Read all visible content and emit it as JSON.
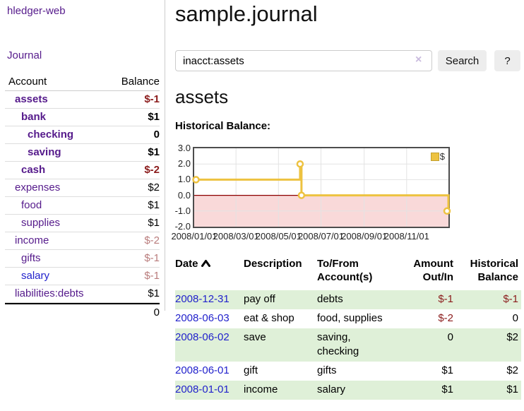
{
  "app": {
    "title": "hledger-web",
    "nav_journal": "Journal"
  },
  "sidebar": {
    "headers": {
      "account": "Account",
      "balance": "Balance"
    },
    "accounts": [
      {
        "name": "assets",
        "balance": "$-1",
        "level": 1,
        "bold": true,
        "neg": "strong",
        "blue": false
      },
      {
        "name": "bank",
        "balance": "$1",
        "level": 2,
        "bold": true,
        "neg": null,
        "blue": false
      },
      {
        "name": "checking",
        "balance": "0",
        "level": 3,
        "bold": true,
        "neg": null,
        "blue": false
      },
      {
        "name": "saving",
        "balance": "$1",
        "level": 3,
        "bold": true,
        "neg": null,
        "blue": false
      },
      {
        "name": "cash",
        "balance": "$-2",
        "level": 2,
        "bold": true,
        "neg": "strong",
        "blue": false
      },
      {
        "name": "expenses",
        "balance": "$2",
        "level": 1,
        "bold": false,
        "neg": null,
        "blue": false
      },
      {
        "name": "food",
        "balance": "$1",
        "level": 2,
        "bold": false,
        "neg": null,
        "blue": false
      },
      {
        "name": "supplies",
        "balance": "$1",
        "level": 2,
        "bold": false,
        "neg": null,
        "blue": false
      },
      {
        "name": "income",
        "balance": "$-2",
        "level": 1,
        "bold": false,
        "neg": "light",
        "blue": false
      },
      {
        "name": "gifts",
        "balance": "$-1",
        "level": 2,
        "bold": false,
        "neg": "light",
        "blue": false
      },
      {
        "name": "salary",
        "balance": "$-1",
        "level": 2,
        "bold": false,
        "neg": "light",
        "blue": true
      },
      {
        "name": "liabilities:debts",
        "balance": "$1",
        "level": 1,
        "bold": false,
        "neg": null,
        "blue": false
      }
    ],
    "total": "0"
  },
  "header": {
    "title": "sample.journal"
  },
  "search": {
    "value": "inacct:assets",
    "clear_icon": "×",
    "button_label": "Search",
    "help_label": "?"
  },
  "account_page": {
    "heading": "assets",
    "chart_title": "Historical Balance:"
  },
  "chart_data": {
    "type": "line",
    "title": "Historical Balance:",
    "step": true,
    "xlim": [
      "2008-01-01",
      "2008-12-31"
    ],
    "ylim": [
      -2,
      3
    ],
    "x_ticks": [
      "2008/01/01",
      "2008/03/01",
      "2008/05/01",
      "2008/07/01",
      "2008/09/01",
      "2008/11/01"
    ],
    "y_ticks": [
      {
        "label": "3.0",
        "value": 3
      },
      {
        "label": "2.0",
        "value": 2
      },
      {
        "label": "1.0",
        "value": 1
      },
      {
        "label": "0.0",
        "value": 0
      },
      {
        "label": "-1.0",
        "value": -1
      },
      {
        "label": "-2.0",
        "value": -2
      }
    ],
    "series": [
      {
        "name": "$",
        "points": [
          {
            "x": "2008-01-01",
            "y": 1
          },
          {
            "x": "2008-06-01",
            "y": 2
          },
          {
            "x": "2008-06-03",
            "y": 0
          },
          {
            "x": "2008-12-31",
            "y": -1
          }
        ]
      }
    ],
    "legend": {
      "label": "$",
      "position": "top-right"
    },
    "negative_region_shaded": true,
    "colors": {
      "series": "#edc240",
      "negative_fill": "#f9d9d9",
      "zero_line": "#8b0000",
      "grid": "#e3e3e3"
    }
  },
  "register": {
    "columns": [
      {
        "line1": "Date",
        "line2": "",
        "align": "left",
        "sorted": "asc"
      },
      {
        "line1": "Description",
        "line2": "",
        "align": "left"
      },
      {
        "line1": "To/From",
        "line2": "Account(s)",
        "align": "left"
      },
      {
        "line1": "Amount",
        "line2": "Out/In",
        "align": "right"
      },
      {
        "line1": "Historical",
        "line2": "Balance",
        "align": "right"
      }
    ],
    "rows": [
      {
        "date": "2008-12-31",
        "description": "pay off",
        "accounts": "debts",
        "amount": "$-1",
        "balance": "$-1",
        "amount_neg": true,
        "balance_neg": true
      },
      {
        "date": "2008-06-03",
        "description": "eat & shop",
        "accounts": "food, supplies",
        "amount": "$-2",
        "balance": "0",
        "amount_neg": true,
        "balance_neg": false
      },
      {
        "date": "2008-06-02",
        "description": "save",
        "accounts": "saving, checking",
        "amount": "0",
        "balance": "$2",
        "amount_neg": false,
        "balance_neg": false
      },
      {
        "date": "2008-06-01",
        "description": "gift",
        "accounts": "gifts",
        "amount": "$1",
        "balance": "$2",
        "amount_neg": false,
        "balance_neg": false
      },
      {
        "date": "2008-01-01",
        "description": "income",
        "accounts": "salary",
        "amount": "$1",
        "balance": "$1",
        "amount_neg": false,
        "balance_neg": false
      }
    ]
  }
}
